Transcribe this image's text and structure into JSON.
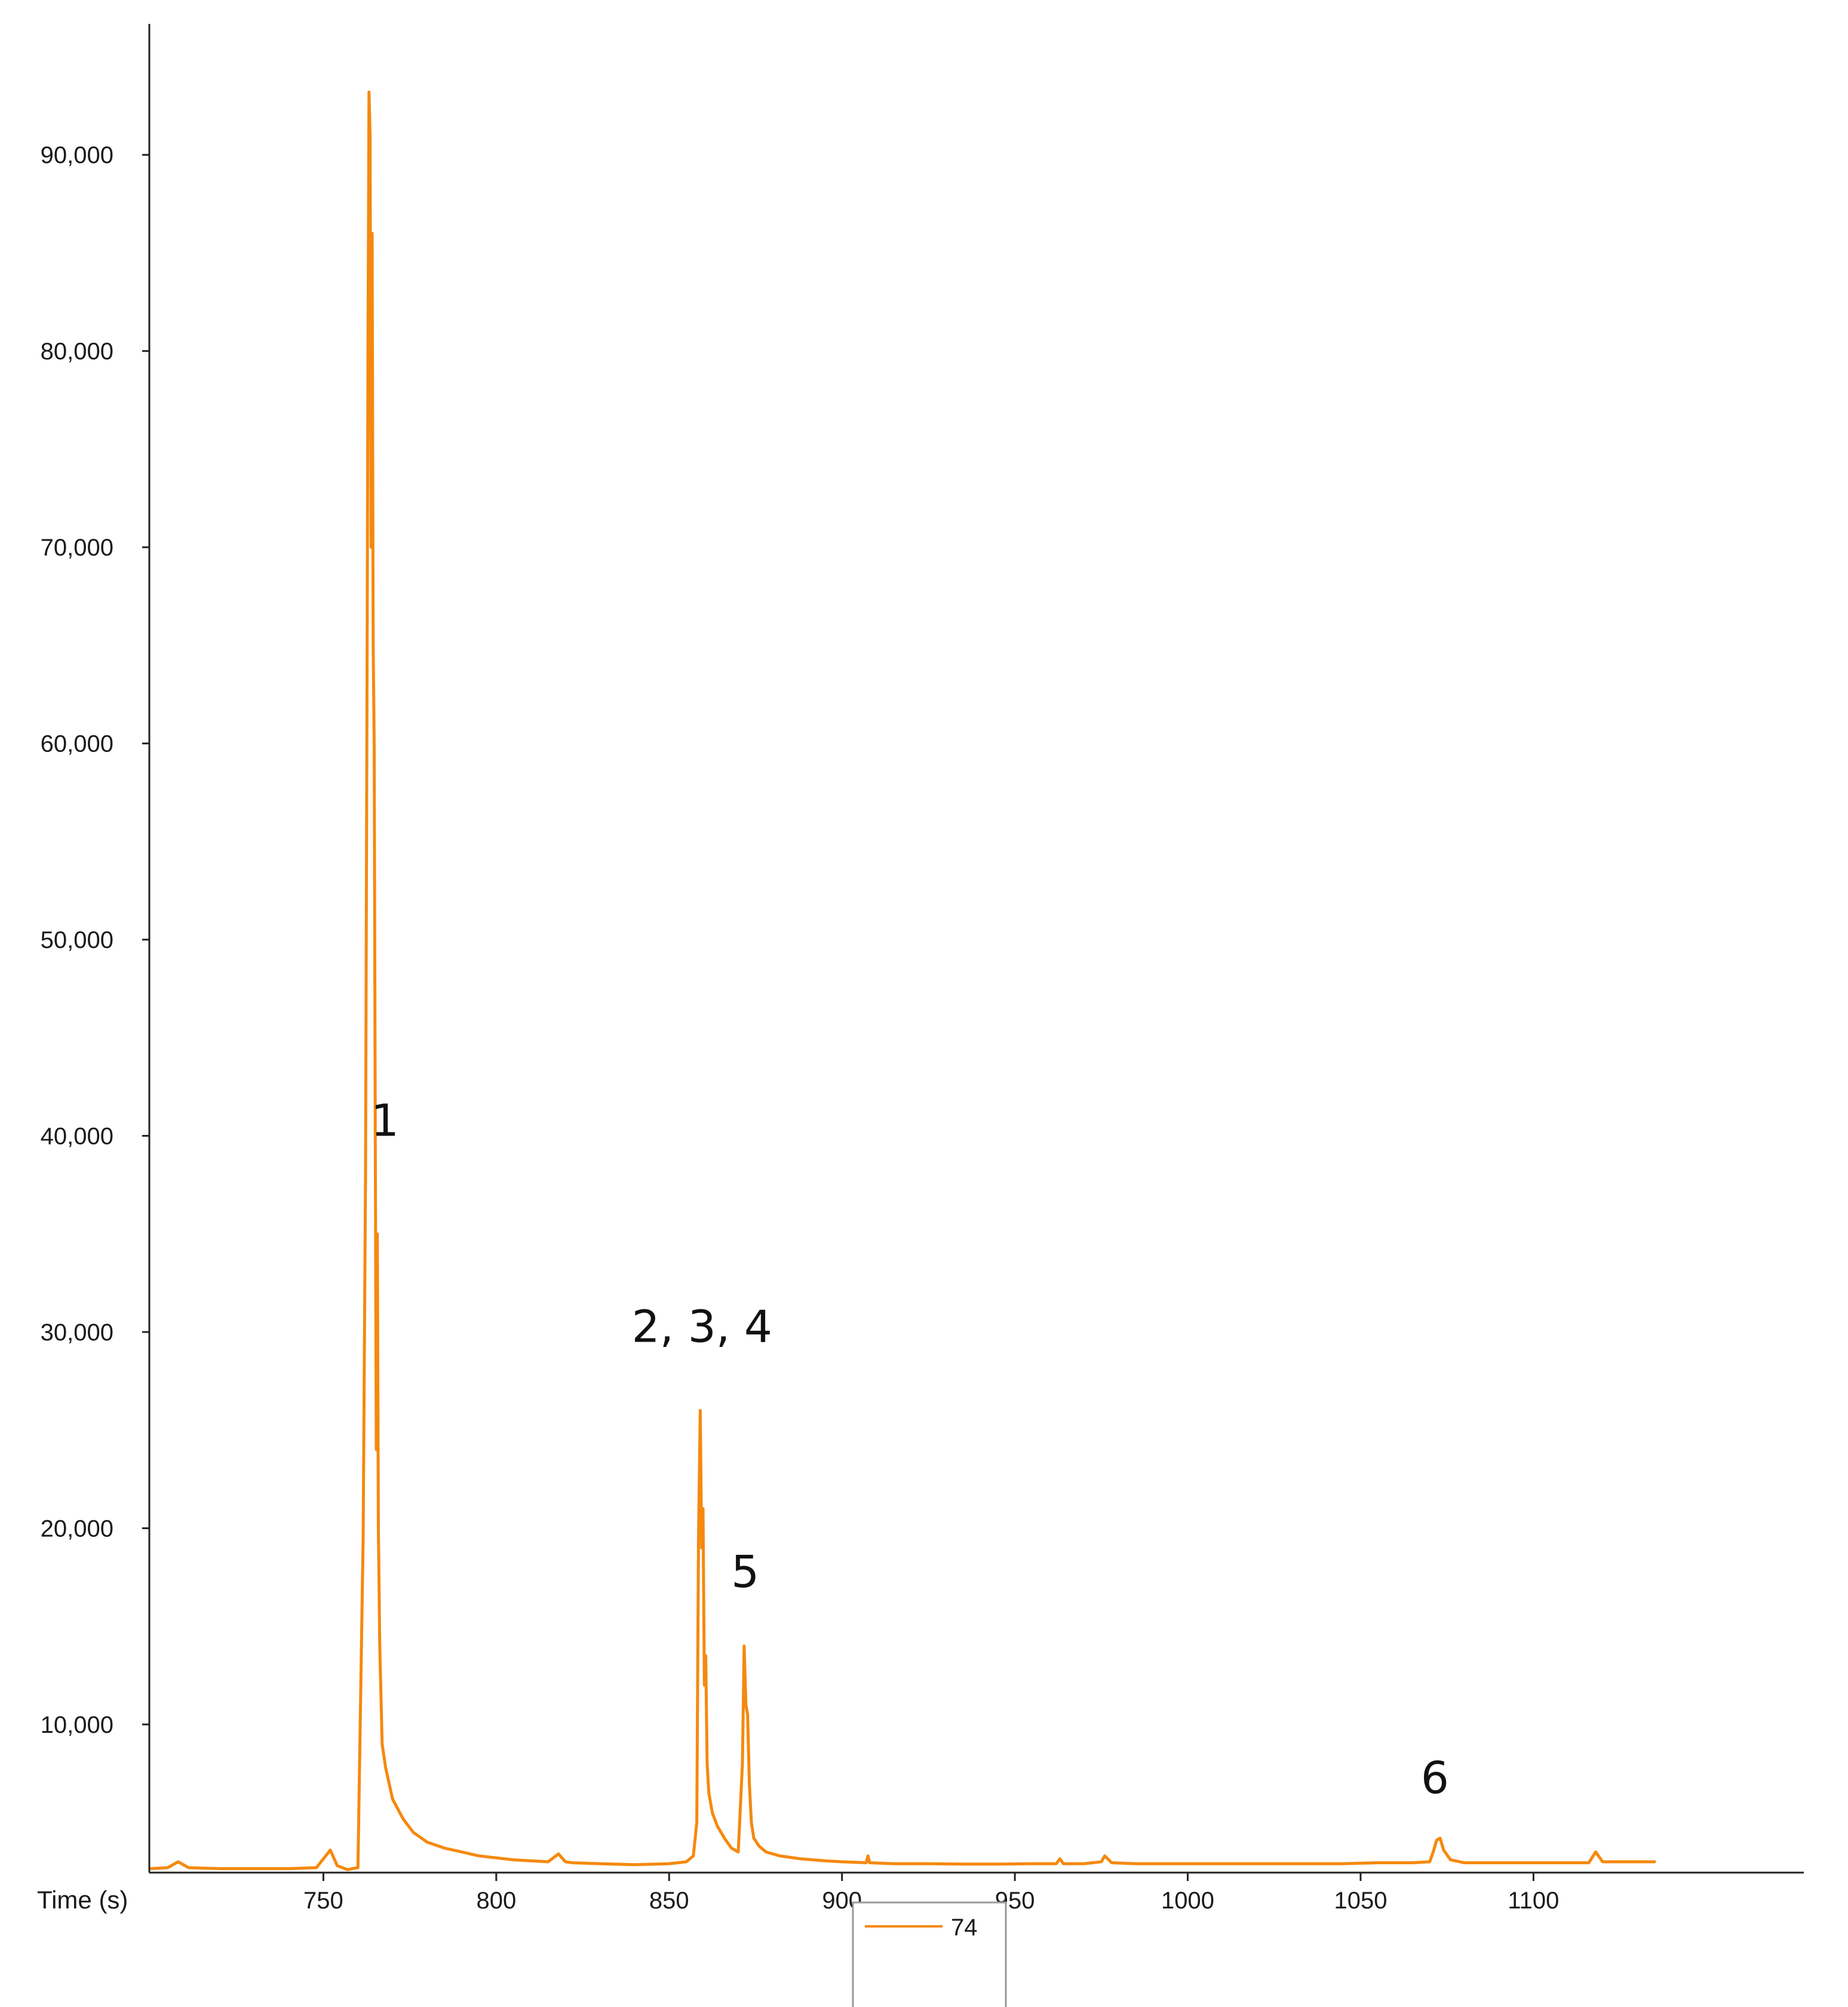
{
  "chart_data": {
    "type": "line",
    "title": "",
    "xlabel": "Time (s)",
    "ylabel": "",
    "xlim": [
      700,
      1135
    ],
    "ylim": [
      2600,
      95000
    ],
    "x_ticks": [
      750,
      800,
      850,
      900,
      950,
      1000,
      1050,
      1100
    ],
    "x_tick_labels": [
      "750",
      "800",
      "850",
      "900",
      "950",
      "1000",
      "1050",
      "1100"
    ],
    "y_ticks": [
      10000,
      20000,
      30000,
      40000,
      50000,
      60000,
      70000,
      80000,
      90000
    ],
    "y_tick_labels": [
      "10,000",
      "20,000",
      "30,000",
      "40,000",
      "50,000",
      "60,000",
      "70,000",
      "80,000",
      "90,000"
    ],
    "grid": false,
    "legend_position": "bottom-center",
    "series": [
      {
        "name": "74",
        "color": "#f5890f",
        "x": [
          700,
          705,
          708,
          711,
          720,
          730,
          740,
          748,
          752,
          754,
          757,
          760,
          761.5,
          762.2,
          762.6,
          762.9,
          763.2,
          763.5,
          763.8,
          764.1,
          764.4,
          764.7,
          765.0,
          765.3,
          765.6,
          765.9,
          766.3,
          767,
          768,
          770,
          773,
          776,
          780,
          785,
          790,
          795,
          800,
          805,
          810,
          815,
          818,
          819,
          820,
          822,
          830,
          840,
          850,
          855,
          857,
          858,
          858.5,
          859,
          859.4,
          859.8,
          860.2,
          860.6,
          861,
          861.5,
          862.5,
          864,
          866,
          868,
          870,
          871.2,
          871.7,
          872.2,
          872.7,
          873.2,
          873.8,
          874.5,
          876,
          878,
          882,
          888,
          895,
          900,
          907,
          907.5,
          908,
          915,
          925,
          935,
          945,
          955,
          962,
          963,
          964,
          970,
          975,
          976,
          978,
          985,
          995,
          1005,
          1015,
          1025,
          1035,
          1045,
          1055,
          1065,
          1070,
          1071,
          1072,
          1073,
          1074,
          1076,
          1080,
          1090,
          1100,
          1110,
          1116,
          1118,
          1120,
          1125,
          1135
        ],
        "values": [
          2650,
          2700,
          3000,
          2700,
          2650,
          2650,
          2650,
          2700,
          3600,
          2800,
          2600,
          2700,
          19500,
          38000,
          62000,
          80000,
          93200,
          91000,
          70000,
          86000,
          65000,
          60000,
          40000,
          24000,
          35000,
          20000,
          14000,
          9000,
          7800,
          6200,
          5200,
          4500,
          4000,
          3700,
          3500,
          3300,
          3200,
          3100,
          3050,
          3000,
          3400,
          3200,
          3000,
          2950,
          2900,
          2850,
          2900,
          3000,
          3300,
          5000,
          19500,
          26000,
          19000,
          21000,
          12000,
          13500,
          8000,
          6500,
          5500,
          4800,
          4200,
          3700,
          3500,
          8000,
          14000,
          11000,
          10500,
          7000,
          5000,
          4200,
          3800,
          3500,
          3300,
          3150,
          3050,
          3000,
          2950,
          3300,
          2950,
          2900,
          2900,
          2880,
          2880,
          2900,
          2900,
          3150,
          2900,
          2900,
          3000,
          3300,
          2950,
          2900,
          2900,
          2900,
          2900,
          2900,
          2900,
          2900,
          2950,
          2950,
          3000,
          3500,
          4100,
          4200,
          3600,
          3100,
          2950,
          2950,
          2950,
          2950,
          2950,
          3500,
          3000,
          3000,
          3000
        ]
      }
    ],
    "annotations": [
      {
        "text": "1",
        "x": 767.8,
        "y": 40000
      },
      {
        "text": "2, 3, 4",
        "x": 859.5,
        "y": 29500
      },
      {
        "text": "5",
        "x": 872.0,
        "y": 17000
      },
      {
        "text": "6",
        "x": 1071.5,
        "y": 6500
      }
    ]
  }
}
